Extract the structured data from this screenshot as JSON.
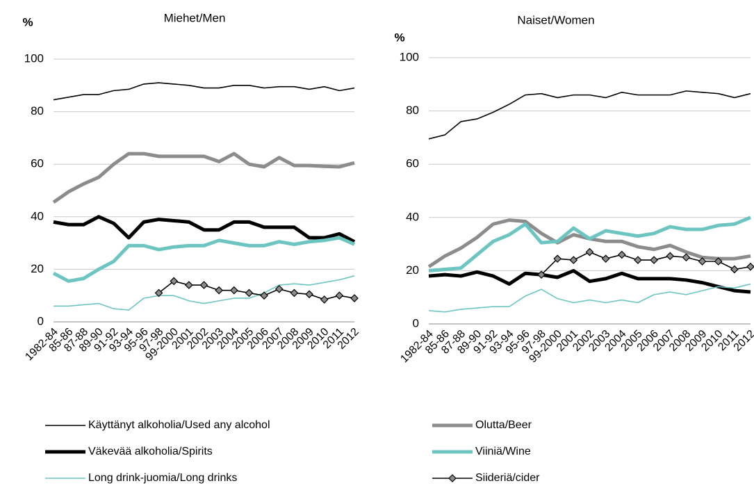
{
  "chart_data": [
    {
      "type": "line",
      "title": "Miehet/Men",
      "ylabel": "%",
      "categories": [
        "1982-84",
        "85-86",
        "87-88",
        "89-90",
        "91-92",
        "93-94",
        "95-96",
        "97-98",
        "99-2000",
        "2001",
        "2002",
        "2003",
        "2004",
        "2005",
        "2006",
        "2007",
        "2008",
        "2009",
        "2010",
        "2011",
        "2012"
      ],
      "ylim": [
        0,
        100
      ],
      "yticks": [
        0,
        20,
        40,
        60,
        80,
        100
      ],
      "grid": true,
      "series": [
        {
          "name": "Käyttänyt alkoholia/Used any alcohol",
          "color": "#000000",
          "style": "thin",
          "values": [
            84.5,
            85.5,
            86.5,
            86.5,
            88,
            88.5,
            90.5,
            91,
            90.5,
            90,
            89,
            89,
            90,
            90,
            89,
            89.5,
            89.5,
            88.5,
            89.5,
            88,
            89
          ]
        },
        {
          "name": "Olutta/Beer",
          "color": "#8c8c8c",
          "style": "thick",
          "values": [
            45.5,
            49.5,
            52.5,
            55,
            60,
            64,
            64,
            63,
            63,
            63,
            63,
            61,
            64,
            60,
            59,
            62.5,
            59.5,
            59.5,
            59.2,
            59,
            60.5
          ]
        },
        {
          "name": "Väkevää alkoholia/Spirits",
          "color": "#000000",
          "style": "thick",
          "values": [
            38,
            37,
            37,
            40,
            37.5,
            32,
            38,
            39,
            38.5,
            38,
            35,
            35,
            38,
            38,
            36,
            36,
            36,
            32,
            32,
            33.5,
            30.5
          ]
        },
        {
          "name": "Viiniä/Wine",
          "color": "#6cc5c0",
          "style": "thick",
          "values": [
            18.5,
            15.5,
            16.5,
            20,
            23,
            29,
            29,
            27.5,
            28.5,
            29,
            29,
            31,
            30,
            29,
            29,
            30.5,
            29.5,
            30.5,
            31,
            32,
            29.5
          ]
        },
        {
          "name": "Long drink-juomia/Long drinks",
          "color": "#6cc5c0",
          "style": "thin",
          "values": [
            6,
            6,
            6.5,
            7,
            5,
            4.5,
            9,
            10,
            10,
            8,
            7,
            8,
            9,
            9,
            11,
            14,
            14.5,
            14,
            15,
            16,
            17.5
          ]
        },
        {
          "name": "Siideriä/cider",
          "color": "#000000",
          "style": "thin",
          "marker": "diamond",
          "values": [
            null,
            null,
            null,
            null,
            null,
            null,
            null,
            11,
            15.5,
            14,
            14,
            12,
            12,
            11,
            10,
            12.5,
            11,
            10.5,
            8.5,
            10,
            9
          ]
        }
      ]
    },
    {
      "type": "line",
      "title": "Naiset/Women",
      "ylabel": "%",
      "categories": [
        "1982-84",
        "85-86",
        "87-88",
        "89-90",
        "91-92",
        "93-94",
        "95-96",
        "97-98",
        "99-2000",
        "2001",
        "2002",
        "2003",
        "2004",
        "2005",
        "2006",
        "2007",
        "2008",
        "2009",
        "2010",
        "2011",
        "2012"
      ],
      "ylim": [
        0,
        100
      ],
      "yticks": [
        0,
        20,
        40,
        60,
        80,
        100
      ],
      "grid": true,
      "series": [
        {
          "name": "Käyttänyt alkoholia/Used any alcohol",
          "color": "#000000",
          "style": "thin",
          "values": [
            69.5,
            71,
            76,
            77,
            79.5,
            82.5,
            86,
            86.5,
            85,
            86,
            86,
            85,
            87,
            86,
            86,
            86,
            87.5,
            87,
            86.5,
            85,
            86.5
          ]
        },
        {
          "name": "Olutta/Beer",
          "color": "#8c8c8c",
          "style": "thick",
          "values": [
            21.5,
            25.5,
            28.5,
            32.5,
            37.5,
            39,
            38.5,
            34,
            30.5,
            33.5,
            32,
            31,
            31,
            29,
            28,
            29.5,
            27,
            25,
            24.5,
            24.5,
            25.5
          ]
        },
        {
          "name": "Väkevää alkoholia/Spirits",
          "color": "#000000",
          "style": "thick",
          "values": [
            18,
            18.5,
            18,
            19.5,
            18,
            15,
            19,
            18.5,
            17.5,
            20,
            16,
            17,
            19,
            17,
            17,
            17,
            16.5,
            15.5,
            14,
            12.5,
            12
          ]
        },
        {
          "name": "Viiniä/Wine",
          "color": "#6cc5c0",
          "style": "thick",
          "values": [
            20,
            20.5,
            21,
            26,
            31,
            33.5,
            37.5,
            30.5,
            31,
            36,
            32,
            35,
            34,
            33,
            34,
            36.5,
            35.5,
            35.5,
            37,
            37.5,
            40
          ]
        },
        {
          "name": "Long drink-juomia/Long drinks",
          "color": "#6cc5c0",
          "style": "thin",
          "values": [
            5,
            4.5,
            5.5,
            6,
            6.5,
            6.5,
            10.5,
            13,
            9.5,
            8,
            9,
            8,
            9,
            8,
            11,
            12,
            11,
            12.5,
            14,
            13.5,
            15
          ]
        },
        {
          "name": "Siideriä/cider",
          "color": "#000000",
          "style": "thin",
          "marker": "diamond",
          "values": [
            null,
            null,
            null,
            null,
            null,
            null,
            null,
            18.5,
            24.5,
            24,
            27,
            24.5,
            26,
            24,
            24,
            25.5,
            25,
            23.5,
            23.5,
            20.5,
            21.5
          ]
        }
      ]
    }
  ]
}
